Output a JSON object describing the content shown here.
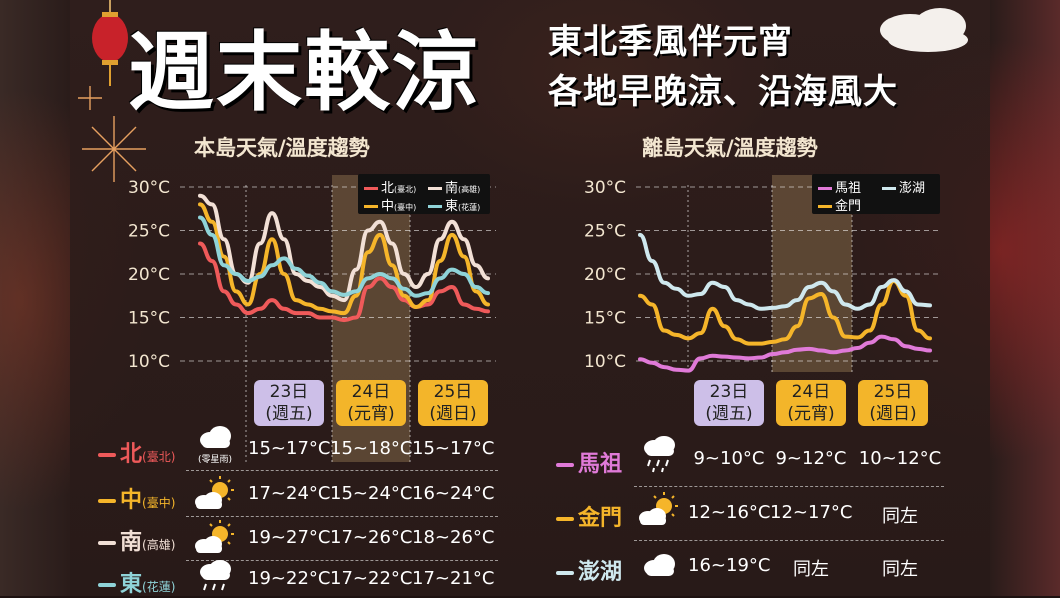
{
  "title": "週末較涼",
  "subtitle_lines": [
    "東北季風伴元宵",
    "各地早晚涼、沿海風大"
  ],
  "colors": {
    "north": "#ef5a5a",
    "central": "#f5b52a",
    "south": "#f2e0d6",
    "east": "#8fd3d8",
    "matsu": "#e07ad8",
    "kinmen": "#f5b52a",
    "penghu": "#cfe8ee",
    "highlight": "rgba(180,150,100,0.35)"
  },
  "main": {
    "section_title": "本島天氣/溫度趨勢",
    "days": [
      {
        "date": "23日",
        "note": "(週五)"
      },
      {
        "date": "24日",
        "note": "(元宵)"
      },
      {
        "date": "25日",
        "note": "(週日)"
      }
    ],
    "legend": [
      {
        "name": "北",
        "sub": "(臺北)"
      },
      {
        "name": "南",
        "sub": "(高雄)"
      },
      {
        "name": "中",
        "sub": "(臺中)"
      },
      {
        "name": "東",
        "sub": "(花蓮)"
      }
    ],
    "rows": [
      {
        "name": "北",
        "sub": "(臺北)",
        "icon": "drizzle-cloud-icon",
        "icon_caption": "(零星雨)",
        "temps": [
          "15~17°C",
          "15~18°C",
          "15~17°C"
        ]
      },
      {
        "name": "中",
        "sub": "(臺中)",
        "icon": "sun-cloud-icon",
        "icon_caption": "",
        "temps": [
          "17~24°C",
          "15~24°C",
          "16~24°C"
        ]
      },
      {
        "name": "南",
        "sub": "(高雄)",
        "icon": "sun-cloud-icon",
        "icon_caption": "",
        "temps": [
          "19~27°C",
          "17~26°C",
          "18~26°C"
        ]
      },
      {
        "name": "東",
        "sub": "(花蓮)",
        "icon": "rain-cloud-icon",
        "icon_caption": "",
        "temps": [
          "19~22°C",
          "17~22°C",
          "17~21°C"
        ]
      }
    ]
  },
  "islands": {
    "section_title": "離島天氣/溫度趨勢",
    "days": [
      {
        "date": "23日",
        "note": "(週五)"
      },
      {
        "date": "24日",
        "note": "(元宵)"
      },
      {
        "date": "25日",
        "note": "(週日)"
      }
    ],
    "legend": [
      {
        "name": "馬祖"
      },
      {
        "name": "澎湖"
      },
      {
        "name": "金門"
      }
    ],
    "rows": [
      {
        "name": "馬祖",
        "icon": "rain-cloud-icon",
        "temps": [
          "9~10°C",
          "9~12°C",
          "10~12°C"
        ]
      },
      {
        "name": "金門",
        "icon": "sun-cloud-icon",
        "temps": [
          "12~16°C",
          "12~17°C",
          "同左"
        ]
      },
      {
        "name": "澎湖",
        "icon": "cloud-icon",
        "temps": [
          "16~19°C",
          "同左",
          "同左"
        ]
      }
    ]
  },
  "chart_data": [
    {
      "type": "line",
      "title": "本島天氣/溫度趨勢",
      "ylim": [
        10,
        30
      ],
      "yticks": [
        "30°C",
        "25°C",
        "20°C",
        "15°C",
        "10°C"
      ],
      "x": [
        0,
        1,
        2,
        3,
        4,
        5,
        6,
        7,
        8,
        9,
        10,
        11,
        12,
        13,
        14,
        15,
        16,
        17,
        18,
        19,
        20,
        21,
        22,
        23,
        24
      ],
      "series": [
        {
          "name": "北",
          "values": [
            23.5,
            21.5,
            18,
            16.5,
            15.5,
            16,
            17,
            16,
            15.5,
            15.5,
            15,
            15,
            14.7,
            15,
            18.5,
            19.5,
            18.5,
            17,
            16.2,
            16.5,
            18,
            18.5,
            16.5,
            16,
            15.7
          ]
        },
        {
          "name": "中",
          "values": [
            28,
            26,
            22,
            18,
            16.5,
            20,
            24,
            20,
            17,
            16.5,
            16,
            15.7,
            15.5,
            17.5,
            22.5,
            24.5,
            21,
            17.5,
            16.2,
            17,
            21.5,
            24.5,
            22,
            18,
            16.5
          ]
        },
        {
          "name": "南",
          "values": [
            29,
            28,
            24,
            20,
            19,
            23.5,
            27,
            24,
            20,
            19.2,
            18.5,
            17.5,
            17,
            20.5,
            25,
            26,
            23.5,
            20,
            18.5,
            20,
            24,
            26,
            24,
            21,
            19.5
          ]
        },
        {
          "name": "東",
          "values": [
            26.5,
            24.5,
            21,
            20,
            19.2,
            19.7,
            21,
            21.8,
            20.6,
            19.8,
            19,
            18,
            17.6,
            18,
            19.5,
            20,
            19.5,
            18.3,
            17.5,
            17.8,
            19.5,
            20.5,
            20,
            18.5,
            17.8
          ]
        }
      ]
    },
    {
      "type": "line",
      "title": "離島天氣/溫度趨勢",
      "ylim": [
        10,
        30
      ],
      "yticks": [
        "30°C",
        "25°C",
        "20°C",
        "15°C",
        "10°C"
      ],
      "x": [
        0,
        1,
        2,
        3,
        4,
        5,
        6,
        7,
        8,
        9,
        10,
        11,
        12,
        13,
        14,
        15,
        16,
        17,
        18,
        19,
        20,
        21,
        22,
        23,
        24
      ],
      "series": [
        {
          "name": "馬祖",
          "values": [
            10.2,
            9.8,
            9.3,
            9,
            8.9,
            10.3,
            10.6,
            10.5,
            10.4,
            10.3,
            10.4,
            10.8,
            11,
            11.3,
            11.4,
            11.2,
            11,
            11.2,
            11.5,
            12.1,
            12.8,
            12.5,
            11.7,
            11.4,
            11.2
          ]
        },
        {
          "name": "金門",
          "values": [
            17.5,
            16.5,
            13.5,
            13,
            12.6,
            13.2,
            16,
            14,
            12.5,
            12,
            12,
            12.2,
            12.5,
            14,
            17.2,
            17.7,
            15,
            12.8,
            12.7,
            13.5,
            16.5,
            19.2,
            17.5,
            13.5,
            12.6
          ]
        },
        {
          "name": "澎湖",
          "values": [
            24.5,
            21.5,
            19,
            18.3,
            17.5,
            17.7,
            19,
            18.5,
            17,
            16.5,
            16,
            16.1,
            16.3,
            17,
            18.5,
            19,
            18,
            16.5,
            16,
            16.5,
            18.5,
            19.3,
            18,
            16.5,
            16.4
          ]
        }
      ]
    }
  ]
}
